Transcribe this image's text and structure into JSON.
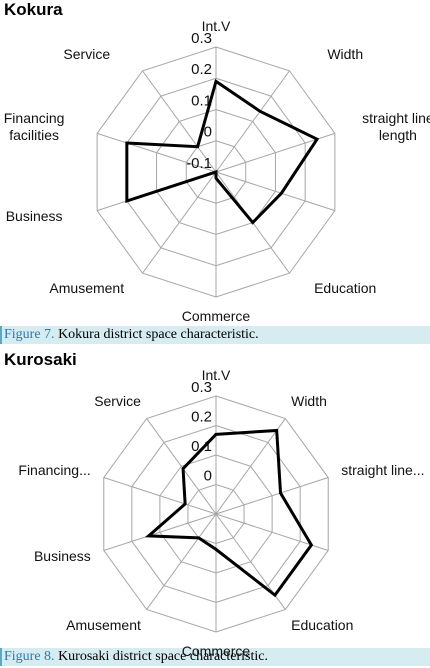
{
  "chart_data": [
    {
      "type": "radar",
      "title": "Kokura",
      "categories": [
        "Int.V",
        "Width",
        "straight line length",
        null,
        "Education",
        "Commerce",
        "Amusement",
        "Business",
        "Financing facilities",
        "Service"
      ],
      "series": [
        {
          "color": "#000000",
          "values": [
            0.19,
            0.14,
            0.24,
            0.12,
            0.1,
            -0.08,
            -0.1,
            0.2,
            0.2,
            0.0
          ]
        }
      ],
      "ylim": [
        -0.1,
        0.3
      ],
      "yticks": [
        -0.1,
        0,
        0.1,
        0.2,
        0.3
      ],
      "grid": true
    },
    {
      "type": "radar",
      "title": "Kurosaki",
      "categories": [
        "Int.V",
        "Width",
        "straight line...",
        null,
        "Education",
        "Commerce",
        "Amusement",
        "Business",
        "Financing...",
        "Service"
      ],
      "series": [
        {
          "color": "#000000",
          "values": [
            0.17,
            0.25,
            0.13,
            0.24,
            0.24,
            0.02,
            0.0,
            0.14,
            0.01,
            0.09
          ]
        }
      ],
      "ylim": [
        -0.1,
        0.3
      ],
      "yticks": [
        0,
        0.1,
        0.2,
        0.3
      ],
      "grid": true
    }
  ],
  "captions": [
    {
      "label": "Figure 7.",
      "text": "Kokura district space characteristic."
    },
    {
      "label": "Figure 8.",
      "text": "Kurosaki district space characteristic."
    }
  ]
}
